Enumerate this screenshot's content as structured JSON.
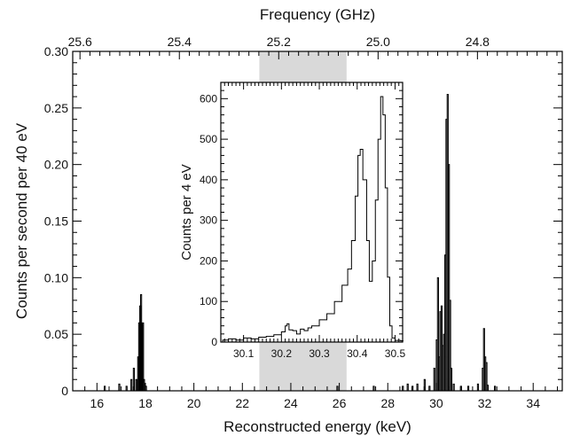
{
  "chart_data": [
    {
      "type": "histogram",
      "xlabel": "Reconstructed energy (keV)",
      "ylabel": "Counts per second per 40 eV",
      "x2label": "Frequency (GHz)",
      "xlim": [
        15,
        35.2
      ],
      "ylim": [
        0,
        0.3
      ],
      "xticks": [
        16,
        18,
        20,
        22,
        24,
        26,
        28,
        30,
        32,
        34
      ],
      "yticks": [
        0,
        0.05,
        0.1,
        0.15,
        0.2,
        0.25,
        0.3
      ],
      "xtick_labels": [
        "16",
        "18",
        "20",
        "22",
        "24",
        "26",
        "28",
        "30",
        "32",
        "34"
      ],
      "ytick_labels": [
        "0",
        "0.05",
        "0.10",
        "0.15",
        "0.20",
        "0.25",
        "0.30"
      ],
      "x2ticks": [
        {
          "label": "25.6",
          "energy": 15.3
        },
        {
          "label": "25.4",
          "energy": 19.4
        },
        {
          "label": "25.2",
          "energy": 23.5
        },
        {
          "label": "25.0",
          "energy": 27.6
        },
        {
          "label": "24.8",
          "energy": 31.7
        }
      ],
      "shaded_band": [
        22.7,
        26.3
      ],
      "histogram": [
        {
          "x": 16.3,
          "y": 0.004
        },
        {
          "x": 16.9,
          "y": 0.006
        },
        {
          "x": 17.2,
          "y": 0.004
        },
        {
          "x": 17.4,
          "y": 0.01
        },
        {
          "x": 17.5,
          "y": 0.02
        },
        {
          "x": 17.6,
          "y": 0.01
        },
        {
          "x": 17.68,
          "y": 0.03
        },
        {
          "x": 17.72,
          "y": 0.06
        },
        {
          "x": 17.76,
          "y": 0.075
        },
        {
          "x": 17.8,
          "y": 0.085
        },
        {
          "x": 17.84,
          "y": 0.06
        },
        {
          "x": 17.88,
          "y": 0.06
        },
        {
          "x": 17.92,
          "y": 0.01
        },
        {
          "x": 18.0,
          "y": 0.004
        },
        {
          "x": 25.9,
          "y": 0.004
        },
        {
          "x": 27.4,
          "y": 0.004
        },
        {
          "x": 28.6,
          "y": 0.004
        },
        {
          "x": 28.8,
          "y": 0.006
        },
        {
          "x": 29.0,
          "y": 0.004
        },
        {
          "x": 29.2,
          "y": 0.006
        },
        {
          "x": 29.5,
          "y": 0.01
        },
        {
          "x": 29.7,
          "y": 0.004
        },
        {
          "x": 29.9,
          "y": 0.02
        },
        {
          "x": 30.0,
          "y": 0.045
        },
        {
          "x": 30.05,
          "y": 0.1
        },
        {
          "x": 30.1,
          "y": 0.03
        },
        {
          "x": 30.15,
          "y": 0.07
        },
        {
          "x": 30.2,
          "y": 0.075
        },
        {
          "x": 30.25,
          "y": 0.04
        },
        {
          "x": 30.3,
          "y": 0.05
        },
        {
          "x": 30.35,
          "y": 0.12
        },
        {
          "x": 30.4,
          "y": 0.24
        },
        {
          "x": 30.45,
          "y": 0.262
        },
        {
          "x": 30.5,
          "y": 0.2
        },
        {
          "x": 30.55,
          "y": 0.08
        },
        {
          "x": 30.6,
          "y": 0.02
        },
        {
          "x": 30.7,
          "y": 0.006
        },
        {
          "x": 31.0,
          "y": 0.004
        },
        {
          "x": 31.3,
          "y": 0.004
        },
        {
          "x": 31.7,
          "y": 0.006
        },
        {
          "x": 31.9,
          "y": 0.02
        },
        {
          "x": 31.95,
          "y": 0.055
        },
        {
          "x": 32.0,
          "y": 0.03
        },
        {
          "x": 32.05,
          "y": 0.025
        },
        {
          "x": 32.1,
          "y": 0.005
        },
        {
          "x": 32.4,
          "y": 0.004
        }
      ],
      "inset": {
        "ylabel": "Counts per 4 eV",
        "xlim": [
          30.04,
          30.52
        ],
        "ylim": [
          0,
          640
        ],
        "xticks": [
          30.1,
          30.2,
          30.3,
          30.4,
          30.5
        ],
        "yticks": [
          0,
          100,
          200,
          300,
          400,
          500,
          600
        ],
        "xtick_labels": [
          "30.1",
          "30.2",
          "30.3",
          "30.4",
          "30.5"
        ],
        "ytick_labels": [
          "0",
          "100",
          "200",
          "300",
          "400",
          "500",
          "600"
        ],
        "histogram": [
          {
            "x": 30.045,
            "y": 5
          },
          {
            "x": 30.06,
            "y": 8
          },
          {
            "x": 30.08,
            "y": 5
          },
          {
            "x": 30.1,
            "y": 10
          },
          {
            "x": 30.12,
            "y": 8
          },
          {
            "x": 30.14,
            "y": 12
          },
          {
            "x": 30.16,
            "y": 14
          },
          {
            "x": 30.18,
            "y": 18
          },
          {
            "x": 30.2,
            "y": 25
          },
          {
            "x": 30.21,
            "y": 40
          },
          {
            "x": 30.215,
            "y": 45
          },
          {
            "x": 30.22,
            "y": 30
          },
          {
            "x": 30.23,
            "y": 28
          },
          {
            "x": 30.24,
            "y": 20
          },
          {
            "x": 30.25,
            "y": 32
          },
          {
            "x": 30.26,
            "y": 28
          },
          {
            "x": 30.27,
            "y": 35
          },
          {
            "x": 30.28,
            "y": 40
          },
          {
            "x": 30.3,
            "y": 55
          },
          {
            "x": 30.32,
            "y": 70
          },
          {
            "x": 30.34,
            "y": 100
          },
          {
            "x": 30.36,
            "y": 140
          },
          {
            "x": 30.375,
            "y": 180
          },
          {
            "x": 30.385,
            "y": 250
          },
          {
            "x": 30.395,
            "y": 360
          },
          {
            "x": 30.402,
            "y": 460
          },
          {
            "x": 30.408,
            "y": 475
          },
          {
            "x": 30.415,
            "y": 400
          },
          {
            "x": 30.425,
            "y": 250
          },
          {
            "x": 30.432,
            "y": 150
          },
          {
            "x": 30.44,
            "y": 200
          },
          {
            "x": 30.448,
            "y": 350
          },
          {
            "x": 30.455,
            "y": 500
          },
          {
            "x": 30.462,
            "y": 605
          },
          {
            "x": 30.468,
            "y": 560
          },
          {
            "x": 30.474,
            "y": 380
          },
          {
            "x": 30.48,
            "y": 160
          },
          {
            "x": 30.486,
            "y": 40
          },
          {
            "x": 30.492,
            "y": 10
          },
          {
            "x": 30.5,
            "y": 4
          },
          {
            "x": 30.515,
            "y": 3
          }
        ]
      }
    }
  ]
}
